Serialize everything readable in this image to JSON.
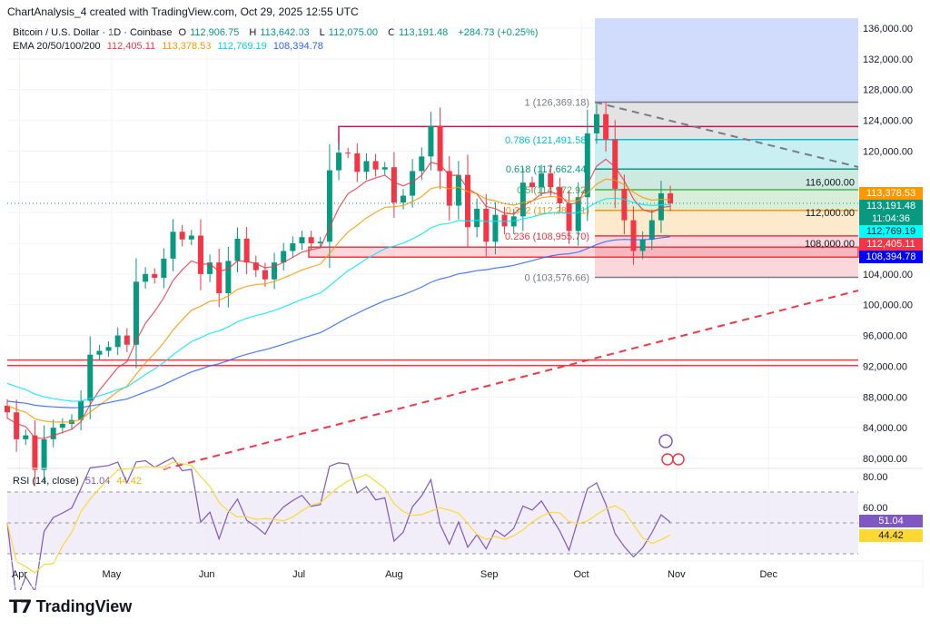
{
  "header": {
    "attribution": "ChartAnalysis_4 created with TradingView.com, Oct 29, 2025 12:55 UTC"
  },
  "legend": {
    "symbol": "Bitcoin / U.S. Dollar · 1D · Coinbase",
    "o_label": "O",
    "o": "112,906.75",
    "h_label": "H",
    "h": "113,642.03",
    "l_label": "L",
    "l": "112,075.00",
    "c_label": "C",
    "c": "113,191.48",
    "change": "+284.73 (+0.25%)",
    "ema_label": "EMA 20/50/100/200",
    "ema20": "112,405.11",
    "ema50": "113,378.53",
    "ema100": "112,769.19",
    "ema200": "108,394.78",
    "rsi_label": "RSI (14, close)",
    "rsi": "51.04",
    "rsi_ma": "44.42"
  },
  "price_tags": {
    "ema50": "113,378.53",
    "last": "113,191.48",
    "countdown": "11:04:36",
    "ema100": "112,769.19",
    "ema20": "112,405.11",
    "ema200": "108,394.78",
    "rsi": "51.04",
    "rsi_ma": "44.42"
  },
  "fib": [
    {
      "level": "1",
      "price": "126,369.18",
      "value": 126369.18,
      "color": "#787b86"
    },
    {
      "level": "0.786",
      "price": "121,491.58",
      "value": 121491.58,
      "color": "#00bcd4"
    },
    {
      "level": "0.618",
      "price": "117,662.44",
      "value": 117662.44,
      "color": "#089981"
    },
    {
      "level": "0.5",
      "price": "114,972.92",
      "value": 114972.92,
      "color": "#4caf50"
    },
    {
      "level": "0.382",
      "price": "112,283.41",
      "value": 112283.41,
      "color": "#ff9800"
    },
    {
      "level": "0.236",
      "price": "108,955.70",
      "value": 108955.7,
      "color": "#f23645"
    },
    {
      "level": "0",
      "price": "103,576.66",
      "value": 103576.66,
      "color": "#787b86"
    }
  ],
  "colors": {
    "up": "#089981",
    "down": "#f23645",
    "ema20": "#f23645",
    "ema50": "#ff9800",
    "ema100": "#00e5ff",
    "ema200": "#2962ff",
    "rsi": "#7e57c2",
    "rsi_ma": "#fdd835"
  },
  "brand": "TradingView",
  "chart_data": {
    "type": "candlestick",
    "title": "Bitcoin / U.S. Dollar · 1D · Coinbase",
    "x_start": "2025-03-28",
    "x_step_days": 3,
    "closes_k": [
      86,
      82.5,
      83,
      78.5,
      82.5,
      84,
      84.5,
      85,
      87.5,
      93.5,
      94,
      94.5,
      96,
      94.8,
      103,
      104,
      103.5,
      106,
      109.5,
      108.5,
      109,
      104,
      105.5,
      101.5,
      105.7,
      108.6,
      105.5,
      104.5,
      103.3,
      105.5,
      107,
      108,
      108.8,
      108,
      108.2,
      117.5,
      119.8,
      119.7,
      117.3,
      118.7,
      117.6,
      117.9,
      113.3,
      114.2,
      117.4,
      119.3,
      123.3,
      117.4,
      112.9,
      116.9,
      110.1,
      112.5,
      108.2,
      111.7,
      110.2,
      111.5,
      115.9,
      115.3,
      117.1,
      115.3,
      113.2,
      109.6,
      114,
      122.3,
      124.8,
      121.5,
      115.1,
      111,
      107,
      108.5,
      111,
      114.5,
      113.19
    ],
    "ema_seed_k": {
      "ema20": 85,
      "ema50": 87,
      "ema100": 90,
      "ema200": 87.5
    },
    "y_ticks": [
      "136,000.00",
      "132,000.00",
      "128,000.00",
      "124,000.00",
      "120,000.00",
      "116,000.00",
      "112,000.00",
      "108,000.00",
      "104,000.00",
      "100,000.00",
      "96,000.00",
      "92,000.00",
      "88,000.00",
      "84,000.00",
      "80,000.00"
    ],
    "ylim": [
      78000,
      136000
    ],
    "x_ticks": [
      "Apr",
      "May",
      "Jun",
      "Jul",
      "Aug",
      "Sep",
      "Oct",
      "Nov",
      "Dec"
    ],
    "rsi_ticks": [
      "80.00",
      "60.00"
    ],
    "levels": {
      "resistance": 123200,
      "support_box": [
        106200,
        107500
      ],
      "support_lines": [
        92100,
        92800
      ]
    }
  }
}
